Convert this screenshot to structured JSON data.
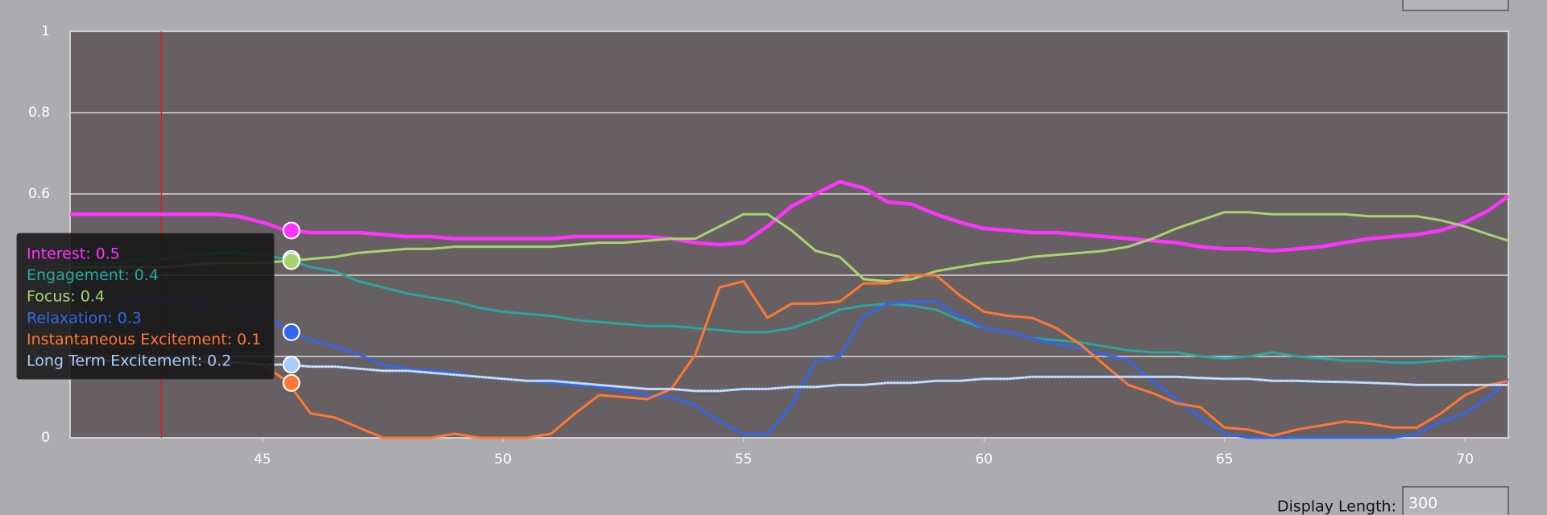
{
  "chart_data": {
    "type": "line",
    "x": [
      41,
      41.5,
      42,
      42.5,
      43,
      43.5,
      44,
      44.5,
      45,
      45.5,
      46,
      46.5,
      47,
      47.5,
      48,
      48.5,
      49,
      49.5,
      50,
      50.5,
      51,
      51.5,
      52,
      52.5,
      53,
      53.5,
      54,
      54.5,
      55,
      55.5,
      56,
      56.5,
      57,
      57.5,
      58,
      58.5,
      59,
      59.5,
      60,
      60.5,
      61,
      61.5,
      62,
      62.5,
      63,
      63.5,
      64,
      64.5,
      65,
      65.5,
      66,
      66.5,
      67,
      67.5,
      68,
      68.5,
      69,
      69.5,
      70,
      70.5,
      70.9
    ],
    "xlim": [
      41,
      70.9
    ],
    "xticks": [
      45,
      50,
      55,
      60,
      65,
      70
    ],
    "ylim": [
      0,
      1
    ],
    "yticks": [
      0,
      0.2,
      0.4,
      0.6,
      0.8,
      1
    ],
    "grid": true,
    "marker_x": 42.9,
    "series": [
      {
        "name": "Interest",
        "color": "#ff33ff",
        "values": [
          0.55,
          0.55,
          0.55,
          0.55,
          0.55,
          0.55,
          0.55,
          0.545,
          0.53,
          0.51,
          0.505,
          0.505,
          0.505,
          0.5,
          0.495,
          0.495,
          0.49,
          0.49,
          0.49,
          0.49,
          0.49,
          0.495,
          0.495,
          0.495,
          0.495,
          0.49,
          0.48,
          0.475,
          0.48,
          0.52,
          0.57,
          0.6,
          0.63,
          0.615,
          0.58,
          0.575,
          0.55,
          0.53,
          0.515,
          0.51,
          0.505,
          0.505,
          0.5,
          0.495,
          0.49,
          0.485,
          0.48,
          0.47,
          0.465,
          0.465,
          0.46,
          0.465,
          0.47,
          0.48,
          0.49,
          0.495,
          0.5,
          0.51,
          0.53,
          0.56,
          0.595
        ]
      },
      {
        "name": "Engagement",
        "color": "#2aa6a0",
        "values": [
          0.43,
          0.43,
          0.43,
          0.44,
          0.44,
          0.45,
          0.455,
          0.455,
          0.45,
          0.44,
          0.42,
          0.41,
          0.385,
          0.37,
          0.355,
          0.345,
          0.335,
          0.32,
          0.31,
          0.305,
          0.3,
          0.29,
          0.285,
          0.28,
          0.275,
          0.275,
          0.27,
          0.265,
          0.26,
          0.26,
          0.27,
          0.29,
          0.315,
          0.325,
          0.33,
          0.325,
          0.315,
          0.29,
          0.27,
          0.26,
          0.245,
          0.24,
          0.235,
          0.225,
          0.215,
          0.21,
          0.21,
          0.2,
          0.195,
          0.2,
          0.21,
          0.2,
          0.195,
          0.19,
          0.19,
          0.185,
          0.185,
          0.19,
          0.195,
          0.2,
          0.2
        ]
      },
      {
        "name": "Focus",
        "color": "#a8d46f",
        "values": [
          0.42,
          0.42,
          0.42,
          0.42,
          0.42,
          0.425,
          0.43,
          0.43,
          0.43,
          0.435,
          0.44,
          0.445,
          0.455,
          0.46,
          0.465,
          0.465,
          0.47,
          0.47,
          0.47,
          0.47,
          0.47,
          0.475,
          0.48,
          0.48,
          0.485,
          0.49,
          0.49,
          0.52,
          0.55,
          0.55,
          0.51,
          0.46,
          0.445,
          0.39,
          0.385,
          0.39,
          0.41,
          0.42,
          0.43,
          0.435,
          0.445,
          0.45,
          0.455,
          0.46,
          0.47,
          0.49,
          0.515,
          0.535,
          0.555,
          0.555,
          0.55,
          0.55,
          0.55,
          0.55,
          0.545,
          0.545,
          0.545,
          0.535,
          0.52,
          0.5,
          0.485
        ]
      },
      {
        "name": "Relaxation",
        "color": "#3366ee",
        "values": [
          0.35,
          0.35,
          0.34,
          0.34,
          0.335,
          0.33,
          0.33,
          0.32,
          0.31,
          0.265,
          0.24,
          0.225,
          0.205,
          0.18,
          0.17,
          0.165,
          0.16,
          0.15,
          0.145,
          0.14,
          0.135,
          0.13,
          0.125,
          0.115,
          0.105,
          0.1,
          0.08,
          0.04,
          0.01,
          0.01,
          0.08,
          0.19,
          0.2,
          0.3,
          0.33,
          0.335,
          0.335,
          0.3,
          0.27,
          0.26,
          0.245,
          0.23,
          0.22,
          0.205,
          0.19,
          0.14,
          0.095,
          0.05,
          0.01,
          0,
          0,
          0,
          0,
          0,
          0,
          0,
          0.01,
          0.04,
          0.06,
          0.1,
          0.145
        ]
      },
      {
        "name": "Instantaneous Excitement",
        "color": "#ff7733",
        "values": [
          0.2,
          0.2,
          0.2,
          0.19,
          0.19,
          0.19,
          0.19,
          0.185,
          0.18,
          0.14,
          0.06,
          0.05,
          0.025,
          0,
          0,
          0,
          0.01,
          0,
          0,
          0,
          0.01,
          0.06,
          0.105,
          0.1,
          0.095,
          0.12,
          0.205,
          0.37,
          0.385,
          0.295,
          0.33,
          0.33,
          0.335,
          0.38,
          0.38,
          0.4,
          0.4,
          0.35,
          0.31,
          0.3,
          0.295,
          0.27,
          0.23,
          0.18,
          0.13,
          0.11,
          0.085,
          0.075,
          0.025,
          0.02,
          0.005,
          0.02,
          0.03,
          0.04,
          0.035,
          0.025,
          0.025,
          0.06,
          0.105,
          0.13,
          0.14
        ]
      },
      {
        "name": "Long Term Excitement",
        "color": "#aaccff",
        "values": [
          0.19,
          0.19,
          0.19,
          0.19,
          0.19,
          0.19,
          0.185,
          0.185,
          0.18,
          0.18,
          0.175,
          0.175,
          0.17,
          0.165,
          0.165,
          0.16,
          0.155,
          0.15,
          0.145,
          0.14,
          0.14,
          0.135,
          0.13,
          0.125,
          0.12,
          0.12,
          0.115,
          0.115,
          0.12,
          0.12,
          0.125,
          0.125,
          0.13,
          0.13,
          0.135,
          0.135,
          0.14,
          0.14,
          0.145,
          0.145,
          0.15,
          0.15,
          0.15,
          0.15,
          0.15,
          0.15,
          0.15,
          0.147,
          0.145,
          0.145,
          0.14,
          0.14,
          0.138,
          0.137,
          0.135,
          0.133,
          0.13,
          0.13,
          0.13,
          0.13,
          0.13
        ]
      }
    ],
    "tooltip": {
      "x": 45.6,
      "items": [
        {
          "text": "Interest: 0.5",
          "value": 0.51
        },
        {
          "text": "Engagement: 0.4",
          "value": 0.44
        },
        {
          "text": "Focus: 0.4",
          "value": 0.435
        },
        {
          "text": "Relaxation: 0.3",
          "value": 0.26
        },
        {
          "text": "Instantaneous Excitement: 0.1",
          "value": 0.135
        },
        {
          "text": "Long Term Excitement: 0.2",
          "value": 0.18
        }
      ]
    }
  },
  "controls": {
    "display_length_label": "Display Length:",
    "display_length": "300"
  }
}
